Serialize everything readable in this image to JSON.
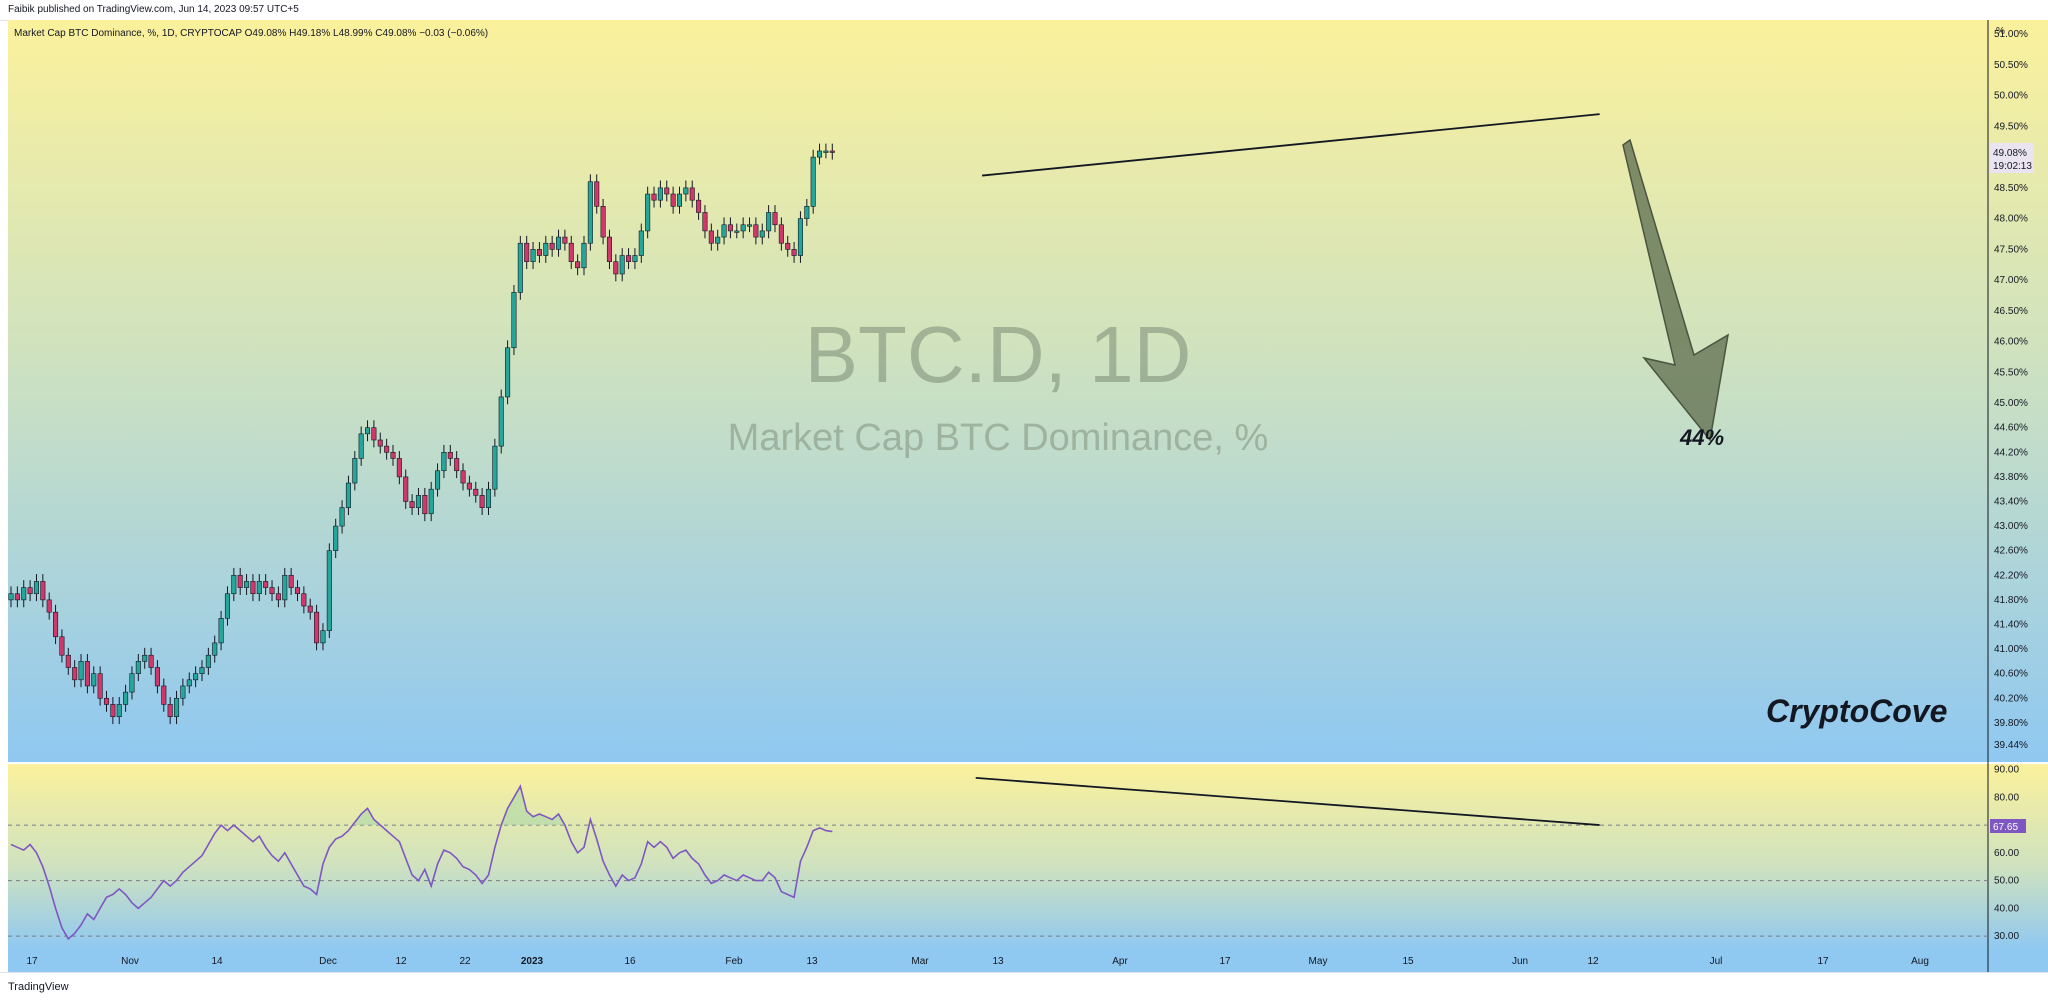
{
  "header": {
    "published": "Faibik published on TradingView.com, Jun 14, 2023 09:57 UTC+5"
  },
  "legend": {
    "text": "Market Cap BTC Dominance, %, 1D, CRYPTOCAP  O49.08%  H49.18%  L48.99%  C49.08%  −0.03 (−0.06%)"
  },
  "watermark": {
    "symbol": "BTC.D, 1D",
    "name": "Market Cap BTC Dominance, %"
  },
  "annotations": {
    "target": "44%",
    "brand": "CryptoCove"
  },
  "footer": {
    "logo": "TradingView"
  },
  "colors": {
    "up": "#26a69a",
    "down": "#d0386b",
    "line": "#131722",
    "rsi": "#7e57c2",
    "arrow": "#6b7a5a"
  },
  "price_axis": {
    "unit": "%",
    "ticks": [
      "51.00%",
      "50.50%",
      "50.00%",
      "49.50%",
      "48.50%",
      "48.00%",
      "47.50%",
      "47.00%",
      "46.50%",
      "46.00%",
      "45.50%",
      "45.00%",
      "44.60%",
      "44.20%",
      "43.80%",
      "43.40%",
      "43.00%",
      "42.60%",
      "42.20%",
      "41.80%",
      "41.40%",
      "41.00%",
      "40.60%",
      "40.20%",
      "39.80%",
      "39.44%"
    ],
    "last_price": "49.08%",
    "countdown": "19:02:13"
  },
  "rsi_axis": {
    "ticks": [
      "90.00",
      "80.00",
      "70.00",
      "60.00",
      "50.00",
      "40.00",
      "30.00"
    ],
    "last_value": "67.65"
  },
  "time_axis": {
    "labels": [
      "17",
      "Nov",
      "14",
      "Dec",
      "12",
      "22",
      "2023",
      "16",
      "Feb",
      "13",
      "Mar",
      "13",
      "Apr",
      "17",
      "May",
      "15",
      "Jun",
      "12",
      "Jul",
      "17",
      "Aug"
    ]
  },
  "chart_data": [
    {
      "type": "candlestick",
      "title": "Market Cap BTC Dominance, %, 1D, CRYPTOCAP",
      "x_range": [
        "2022-10-13",
        "2023-08-20"
      ],
      "ylim": [
        39.44,
        51.1
      ],
      "ohlc_close_series": [
        41.9,
        41.8,
        42.0,
        41.9,
        42.1,
        41.8,
        41.6,
        41.2,
        40.9,
        40.7,
        40.5,
        40.8,
        40.4,
        40.6,
        40.2,
        40.1,
        39.9,
        40.1,
        40.3,
        40.6,
        40.8,
        40.9,
        40.7,
        40.4,
        40.1,
        39.9,
        40.2,
        40.4,
        40.5,
        40.6,
        40.7,
        40.9,
        41.1,
        41.5,
        41.9,
        42.2,
        42.0,
        42.1,
        41.9,
        42.1,
        42.0,
        41.9,
        41.8,
        42.2,
        42.0,
        41.9,
        41.7,
        41.6,
        41.1,
        41.3,
        42.6,
        43.0,
        43.3,
        43.7,
        44.1,
        44.5,
        44.6,
        44.4,
        44.3,
        44.2,
        44.1,
        43.8,
        43.4,
        43.3,
        43.5,
        43.2,
        43.6,
        43.9,
        44.2,
        44.1,
        43.9,
        43.7,
        43.6,
        43.5,
        43.3,
        43.6,
        44.3,
        45.1,
        45.9,
        46.8,
        47.6,
        47.3,
        47.5,
        47.4,
        47.6,
        47.5,
        47.7,
        47.6,
        47.3,
        47.2,
        47.6,
        48.6,
        48.2,
        47.7,
        47.3,
        47.1,
        47.4,
        47.3,
        47.4,
        47.8,
        48.4,
        48.3,
        48.5,
        48.4,
        48.2,
        48.4,
        48.5,
        48.3,
        48.1,
        47.8,
        47.6,
        47.7,
        47.9,
        47.8,
        47.8,
        47.9,
        47.9,
        47.7,
        47.8,
        48.1,
        47.9,
        47.6,
        47.5,
        47.4,
        48.0,
        48.2,
        49.0,
        49.1,
        49.1,
        49.08
      ],
      "trendline": {
        "from": [
          "2023-03-15",
          48.7
        ],
        "to": [
          "2023-06-20",
          49.7
        ]
      },
      "projection": {
        "label": "44%",
        "target": 44.0
      }
    },
    {
      "type": "line",
      "title": "",
      "ylim": [
        25,
        92
      ],
      "reference_lines": [
        70,
        50,
        30
      ],
      "series": [
        {
          "name": "",
          "values": [
            63,
            62,
            61,
            63,
            60,
            55,
            48,
            40,
            33,
            29,
            31,
            34,
            38,
            36,
            40,
            44,
            45,
            47,
            45,
            42,
            40,
            42,
            44,
            47,
            50,
            48,
            50,
            53,
            55,
            57,
            59,
            63,
            67,
            70,
            68,
            70,
            68,
            66,
            64,
            66,
            62,
            59,
            57,
            60,
            56,
            52,
            48,
            47,
            45,
            56,
            62,
            65,
            66,
            68,
            71,
            74,
            76,
            72,
            70,
            68,
            66,
            64,
            58,
            52,
            50,
            54,
            48,
            56,
            61,
            60,
            58,
            55,
            54,
            52,
            49,
            52,
            62,
            70,
            76,
            80,
            84,
            75,
            73,
            74,
            73,
            72,
            74,
            70,
            64,
            60,
            62,
            72,
            65,
            57,
            52,
            48,
            52,
            50,
            51,
            56,
            64,
            62,
            64,
            62,
            58,
            60,
            61,
            58,
            56,
            52,
            49,
            50,
            52,
            51,
            50,
            52,
            51,
            50,
            50,
            53,
            51,
            46,
            45,
            44,
            57,
            62,
            68,
            69,
            68,
            67.65
          ]
        }
      ],
      "trendline": {
        "from": [
          "2023-03-14",
          87
        ],
        "to": [
          "2023-06-20",
          70
        ]
      }
    }
  ]
}
